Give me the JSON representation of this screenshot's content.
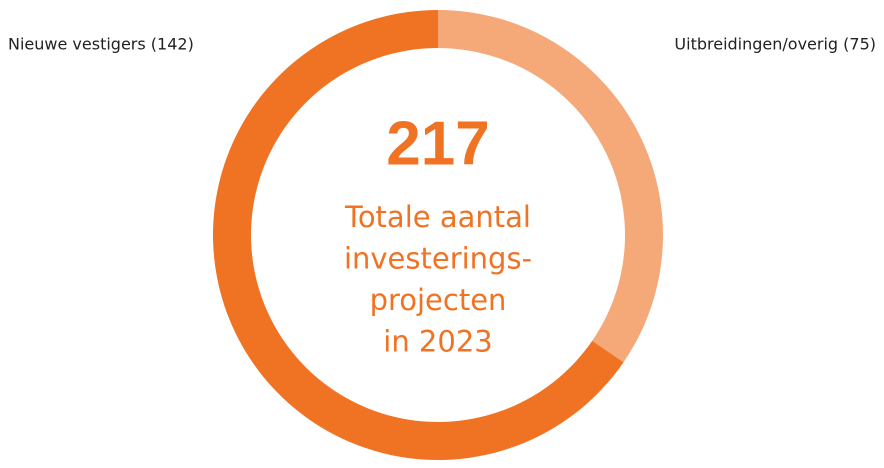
{
  "chart_data": {
    "type": "donut",
    "categories": [
      "Nieuwe vestigers (142)",
      "Uitbreidingen/overig (75)"
    ],
    "values": [
      142,
      75
    ],
    "colors": [
      "#f07324",
      "#f5a878"
    ],
    "center_value": 217,
    "center_lines": [
      "Totale aantal",
      "investerings-",
      "projecten",
      "in 2023"
    ]
  }
}
